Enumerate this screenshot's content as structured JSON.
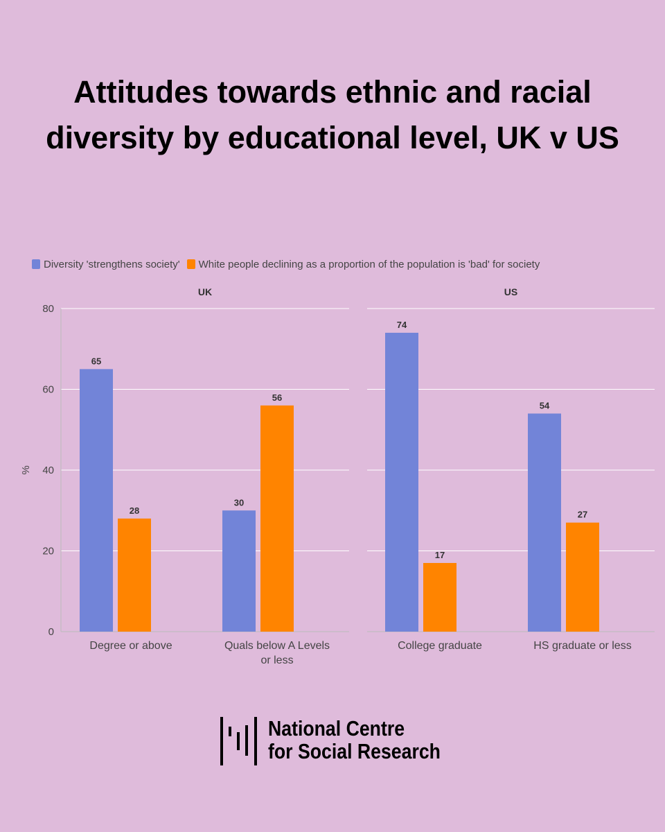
{
  "title": "Attitudes towards ethnic and racial diversity by educational level, UK v US",
  "logo": {
    "line1": "National Centre",
    "line2": "for Social Research"
  },
  "colors": {
    "background": "#dfbbdb",
    "series1": "#7284d8",
    "series2": "#ff8400"
  },
  "chart_data": {
    "type": "bar",
    "ylabel": "%",
    "ylim": [
      0,
      80
    ],
    "yticks": [
      0,
      20,
      40,
      60,
      80
    ],
    "grid": true,
    "legend_position": "top-left",
    "series_names": [
      "Diversity 'strengthens society'",
      "White people declining as a proportion of the population is 'bad' for society"
    ],
    "panels": [
      {
        "title": "UK",
        "categories": [
          "Degree or above",
          "Quals below A Levels or less"
        ],
        "series": [
          {
            "name": "Diversity 'strengthens society'",
            "values": [
              65,
              30
            ]
          },
          {
            "name": "White people declining as a proportion of the population is 'bad' for society",
            "values": [
              28,
              56
            ]
          }
        ]
      },
      {
        "title": "US",
        "categories": [
          "College graduate",
          "HS graduate or less"
        ],
        "series": [
          {
            "name": "Diversity 'strengthens society'",
            "values": [
              74,
              54
            ]
          },
          {
            "name": "White people declining as a proportion of the population is 'bad' for society",
            "values": [
              17,
              27
            ]
          }
        ]
      }
    ]
  }
}
